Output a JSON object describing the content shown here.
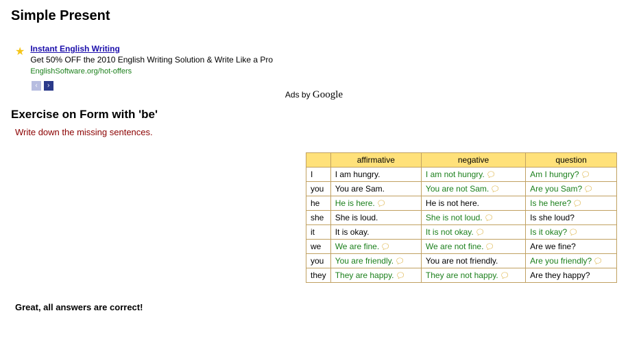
{
  "page_title": "Simple Present",
  "ad": {
    "title": "Instant English Writing",
    "desc": "Get 50% OFF the 2010 English Writing Solution & Write Like a Pro",
    "url": "EnglishSoftware.org/hot-offers",
    "prev": "‹",
    "next": "›"
  },
  "ads_by_prefix": "Ads by ",
  "ads_by_brand": "Google",
  "exercise_title": "Exercise on Form with 'be'",
  "instruction": "Write down the missing sentences.",
  "headers": {
    "aff": "affirmative",
    "neg": "negative",
    "q": "question"
  },
  "rows": [
    {
      "pron": "I",
      "aff": {
        "t": "I am hungry.",
        "a": false
      },
      "neg": {
        "t": "I am not hungry.",
        "a": true
      },
      "q": {
        "t": "Am I hungry?",
        "a": true
      }
    },
    {
      "pron": "you",
      "aff": {
        "t": "You are Sam.",
        "a": false
      },
      "neg": {
        "t": "You are not Sam.",
        "a": true
      },
      "q": {
        "t": "Are you Sam?",
        "a": true
      }
    },
    {
      "pron": "he",
      "aff": {
        "t": "He is here.",
        "a": true
      },
      "neg": {
        "t": "He is not here.",
        "a": false
      },
      "q": {
        "t": "Is he here?",
        "a": true
      }
    },
    {
      "pron": "she",
      "aff": {
        "t": "She is loud.",
        "a": false
      },
      "neg": {
        "t": "She is not loud.",
        "a": true
      },
      "q": {
        "t": "Is she loud?",
        "a": false
      }
    },
    {
      "pron": "it",
      "aff": {
        "t": "It is okay.",
        "a": false
      },
      "neg": {
        "t": "It is not okay.",
        "a": true
      },
      "q": {
        "t": "Is it okay?",
        "a": true
      }
    },
    {
      "pron": "we",
      "aff": {
        "t": "We are fine.",
        "a": true
      },
      "neg": {
        "t": "We are not fine.",
        "a": true
      },
      "q": {
        "t": "Are we fine?",
        "a": false
      }
    },
    {
      "pron": "you",
      "aff": {
        "t": "You are friendly.",
        "a": true
      },
      "neg": {
        "t": "You are not friendly.",
        "a": false
      },
      "q": {
        "t": "Are you friendly?",
        "a": true
      }
    },
    {
      "pron": "they",
      "aff": {
        "t": "They are happy.",
        "a": true
      },
      "neg": {
        "t": "They are not happy.",
        "a": true
      },
      "q": {
        "t": "Are they happy?",
        "a": false
      }
    }
  ],
  "feedback": "Great, all answers are correct!",
  "bubble_glyph": "🗨",
  "colors": {
    "header_bg": "#ffe17a",
    "border": "#c0a060",
    "answer": "#1a7f1a",
    "instruction": "#8b0000",
    "link": "#1a0dab"
  }
}
